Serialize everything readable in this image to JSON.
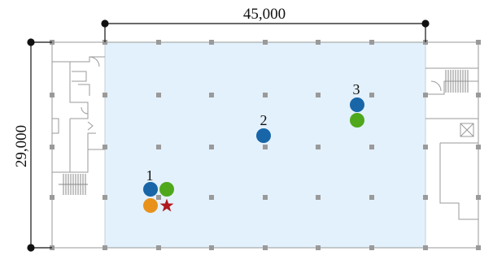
{
  "dimensions": {
    "width_label": "45,000",
    "height_label": "29,000"
  },
  "zone": {
    "fill": "#e3f1fc",
    "stroke": "#b5cfe3"
  },
  "markers": {
    "colors": {
      "blue": "#1866a8",
      "green": "#4fa81c",
      "orange": "#e8921c",
      "star": "#b0191e"
    },
    "groups": [
      {
        "label": "1",
        "items": [
          "blue",
          "green",
          "orange",
          "star"
        ]
      },
      {
        "label": "2",
        "items": [
          "blue"
        ]
      },
      {
        "label": "3",
        "items": [
          "blue",
          "green"
        ]
      }
    ]
  }
}
